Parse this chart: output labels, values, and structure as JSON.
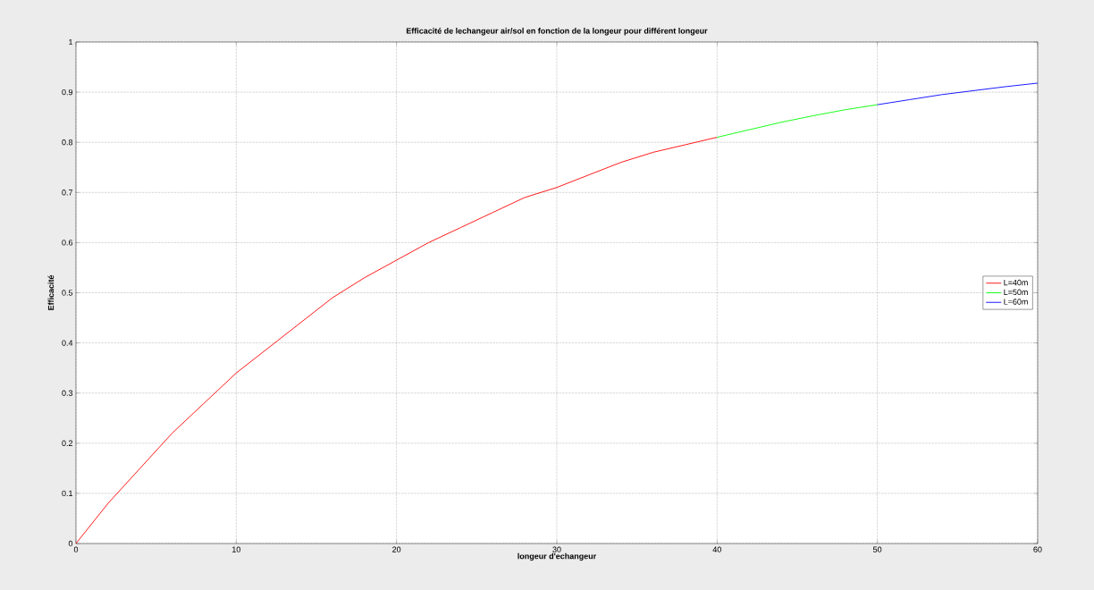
{
  "chart_data": {
    "type": "line",
    "title": "Efficacité de lechangeur air/sol en fonction de la longeur pour différent longeur",
    "xlabel": "longeur d'echangeur",
    "ylabel": "Efficacité",
    "series": [
      {
        "name": "L=40m",
        "color": "#ff0000",
        "x": [
          0,
          2,
          4,
          6,
          8,
          10,
          12,
          14,
          16,
          18,
          20,
          22,
          24,
          26,
          28,
          30,
          32,
          34,
          36,
          38,
          40
        ],
        "values": [
          0,
          0.08,
          0.15,
          0.22,
          0.28,
          0.34,
          0.39,
          0.44,
          0.49,
          0.53,
          0.565,
          0.6,
          0.63,
          0.66,
          0.69,
          0.71,
          0.735,
          0.76,
          0.78,
          0.795,
          0.81
        ]
      },
      {
        "name": "L=50m",
        "color": "#00ff00",
        "x": [
          40,
          42,
          44,
          46,
          48,
          50
        ],
        "values": [
          0.81,
          0.825,
          0.84,
          0.853,
          0.865,
          0.875
        ]
      },
      {
        "name": "L=60m",
        "color": "#0000ff",
        "x": [
          50,
          52,
          54,
          56,
          58,
          60
        ],
        "values": [
          0.875,
          0.885,
          0.895,
          0.903,
          0.911,
          0.918
        ]
      }
    ],
    "xlim": [
      0,
      60
    ],
    "ylim": [
      0,
      1
    ],
    "xticks": [
      0,
      10,
      20,
      30,
      40,
      50,
      60
    ],
    "yticks": [
      0,
      0.1,
      0.2,
      0.3,
      0.4,
      0.5,
      0.6,
      0.7,
      0.8,
      0.9,
      1
    ],
    "grid": true,
    "legend": "right",
    "marker": "none",
    "line_style": "solid"
  }
}
